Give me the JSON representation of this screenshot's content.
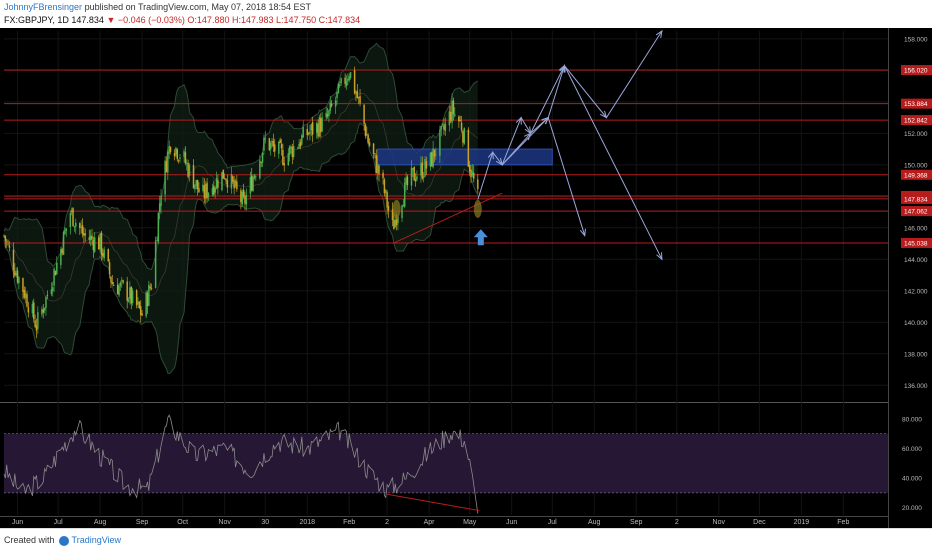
{
  "header": {
    "author": "JohnnyFBrensinger",
    "published_text": "published on TradingView.com, May 07, 2018 18:54 EST",
    "symbol": "FX:GBPJPY, 1D",
    "last": "147.834",
    "change": "▼ −0.046 (−0.03%)",
    "open": "O:147.880",
    "high": "H:147.983",
    "low": "L:147.750",
    "close": "C:147.834"
  },
  "footer": {
    "created_with": "Created with",
    "brand": "TradingView"
  },
  "colors": {
    "background": "#000000",
    "up_candle": "#4caf50",
    "down_candle": "#c9a227",
    "level_line": "#b71c1c",
    "zone": "#1e3a8a",
    "arrows": "#9aa7d8",
    "rsi_band": "#2a1a3a",
    "marker": "#4a90d9"
  },
  "chart_data": [
    {
      "type": "line",
      "subtype": "candlestick",
      "symbol": "FX:GBPJPY",
      "timeframe": "1D",
      "ylim": [
        135,
        158.5
      ],
      "yticks": [
        136,
        138,
        140,
        142,
        144,
        146,
        148,
        150,
        152,
        154,
        156,
        158
      ],
      "ytick_labels": [
        "136.000",
        "138.000",
        "140.000",
        "142.000",
        "144.000",
        "146.000",
        "148.000",
        "150.000",
        "152.000",
        "154.000",
        "156.000",
        "158.000"
      ],
      "xtick_labels": [
        "Jun",
        "Jul",
        "Aug",
        "Sep",
        "Oct",
        "Nov",
        "30",
        "2018",
        "Feb",
        "2",
        "Apr",
        "May",
        "Jun",
        "Jul",
        "Aug",
        "Sep",
        "2",
        "Nov",
        "Dec",
        "2019",
        "Feb"
      ],
      "price_path": [
        [
          "2017-05-22",
          145.5
        ],
        [
          "2017-06-01",
          143.0
        ],
        [
          "2017-06-08",
          141.5
        ],
        [
          "2017-06-15",
          139.8
        ],
        [
          "2017-06-22",
          141.5
        ],
        [
          "2017-07-01",
          144.0
        ],
        [
          "2017-07-10",
          147.0
        ],
        [
          "2017-07-20",
          145.5
        ],
        [
          "2017-08-01",
          145.0
        ],
        [
          "2017-08-10",
          142.5
        ],
        [
          "2017-08-20",
          142.0
        ],
        [
          "2017-09-01",
          140.5
        ],
        [
          "2017-09-08",
          142.5
        ],
        [
          "2017-09-15",
          148.5
        ],
        [
          "2017-09-22",
          151.5
        ],
        [
          "2017-10-01",
          150.5
        ],
        [
          "2017-10-15",
          148.0
        ],
        [
          "2017-11-01",
          149.5
        ],
        [
          "2017-11-15",
          147.5
        ],
        [
          "2017-12-01",
          151.5
        ],
        [
          "2017-12-15",
          150.5
        ],
        [
          "2018-01-01",
          152.0
        ],
        [
          "2018-01-15",
          152.8
        ],
        [
          "2018-02-01",
          156.0
        ],
        [
          "2018-02-08",
          154.0
        ],
        [
          "2018-02-15",
          151.5
        ],
        [
          "2018-02-25",
          149.0
        ],
        [
          "2018-03-05",
          146.0
        ],
        [
          "2018-03-12",
          148.0
        ],
        [
          "2018-03-20",
          149.3
        ],
        [
          "2018-04-01",
          150.0
        ],
        [
          "2018-04-10",
          151.8
        ],
        [
          "2018-04-18",
          153.5
        ],
        [
          "2018-04-25",
          152.5
        ],
        [
          "2018-05-01",
          150.0
        ],
        [
          "2018-05-07",
          147.834
        ]
      ],
      "horizontal_levels": [
        {
          "label": "156.020",
          "value": 156.02
        },
        {
          "label": "153.884",
          "value": 153.884
        },
        {
          "label": "152.842",
          "value": 152.842
        },
        {
          "label": "149.368",
          "value": 149.368
        },
        {
          "label": "148.024",
          "value": 148.024
        },
        {
          "label": "147.834",
          "value": 147.834
        },
        {
          "label": "147.062",
          "value": 147.062
        },
        {
          "label": "145.038",
          "value": 145.038
        }
      ],
      "zone": {
        "x_start": "2018-02-22",
        "x_end": "2018-07-01",
        "y_low": 150.0,
        "y_high": 151.0
      },
      "projection_paths": [
        [
          [
            "2018-05-07",
            147.8
          ],
          [
            "2018-05-18",
            150.8
          ],
          [
            "2018-05-25",
            150.0
          ],
          [
            "2018-06-08",
            153.0
          ],
          [
            "2018-06-15",
            152.0
          ],
          [
            "2018-06-28",
            153.0
          ],
          [
            "2018-07-25",
            145.5
          ]
        ],
        [
          [
            "2018-05-25",
            150.0
          ],
          [
            "2018-06-15",
            152.0
          ],
          [
            "2018-07-10",
            156.3
          ],
          [
            "2018-08-10",
            153.0
          ],
          [
            "2018-09-20",
            158.5
          ]
        ],
        [
          [
            "2018-05-25",
            150.0
          ],
          [
            "2018-06-28",
            153.0
          ],
          [
            "2018-07-10",
            156.3
          ],
          [
            "2018-09-20",
            144.0
          ]
        ]
      ]
    },
    {
      "type": "line",
      "subtype": "oscillator",
      "ylim": [
        15,
        90
      ],
      "yticks": [
        20,
        40,
        60,
        80
      ],
      "ytick_labels": [
        "20.000",
        "40.000",
        "60.000",
        "80.000"
      ],
      "band": [
        30,
        70
      ],
      "path": [
        [
          "2017-05-22",
          45
        ],
        [
          "2017-06-05",
          30
        ],
        [
          "2017-06-20",
          40
        ],
        [
          "2017-07-05",
          62
        ],
        [
          "2017-07-15",
          75
        ],
        [
          "2017-08-01",
          55
        ],
        [
          "2017-08-20",
          35
        ],
        [
          "2017-09-05",
          32
        ],
        [
          "2017-09-20",
          78
        ],
        [
          "2017-10-10",
          55
        ],
        [
          "2017-11-01",
          60
        ],
        [
          "2017-11-20",
          45
        ],
        [
          "2017-12-10",
          65
        ],
        [
          "2018-01-01",
          60
        ],
        [
          "2018-01-25",
          72
        ],
        [
          "2018-02-15",
          45
        ],
        [
          "2018-03-01",
          32
        ],
        [
          "2018-03-15",
          40
        ],
        [
          "2018-04-01",
          58
        ],
        [
          "2018-04-18",
          72
        ],
        [
          "2018-04-28",
          65
        ],
        [
          "2018-05-07",
          18
        ]
      ]
    }
  ]
}
